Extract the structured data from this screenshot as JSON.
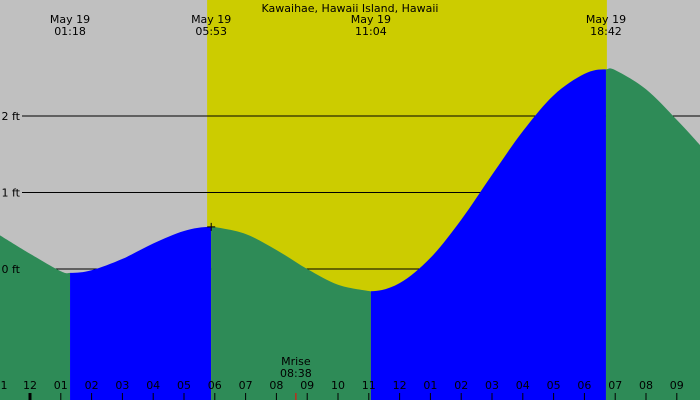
{
  "chart_data": {
    "type": "tide",
    "title": "Kawaihae, Hawaii Island, Hawaii",
    "x": [
      -0.974,
      0,
      1,
      1.3,
      2,
      3,
      4,
      5,
      5.883,
      6,
      7,
      8,
      9,
      10,
      11,
      11.067,
      12,
      13,
      14,
      15,
      16,
      17,
      18,
      18.7,
      19,
      20,
      21,
      21.753
    ],
    "values": [
      0.44,
      0.2,
      -0.03,
      -0.05,
      -0.016,
      0.132,
      0.333,
      0.497,
      0.55,
      0.549,
      0.458,
      0.249,
      0.0,
      -0.205,
      -0.287,
      -0.29,
      -0.185,
      0.145,
      0.644,
      1.23,
      1.8,
      2.27,
      2.55,
      2.61,
      2.6,
      2.35,
      1.95,
      1.62
    ],
    "extremes": [
      {
        "date": "May 19",
        "time": "01:18"
      },
      {
        "date": "May 19",
        "time": "05:53"
      },
      {
        "date": "May 19",
        "time": "11:04"
      },
      {
        "date": "May 19",
        "time": "18:42"
      }
    ],
    "rising_color": "#0000ff",
    "falling_color": "#2e8b57",
    "night_color": "#c0c0c0",
    "day_color": "#cccc00",
    "daylight": [
      5.75,
      18.73
    ],
    "moonrise": {
      "label": "Mrise",
      "time": "08:38",
      "x": 8.633
    },
    "xlim": [
      -0.974,
      21.753
    ],
    "ylim": [
      -1.712,
      3.516
    ],
    "yticks": [
      {
        "value": 0,
        "label": "0 ft"
      },
      {
        "value": 1,
        "label": "1 ft"
      },
      {
        "value": 2,
        "label": "2 ft"
      }
    ],
    "xticks": [
      {
        "value": -1,
        "label": "1"
      },
      {
        "value": 0,
        "label": "12"
      },
      {
        "value": 1,
        "label": "01"
      },
      {
        "value": 2,
        "label": "02"
      },
      {
        "value": 3,
        "label": "03"
      },
      {
        "value": 4,
        "label": "04"
      },
      {
        "value": 5,
        "label": "05"
      },
      {
        "value": 6,
        "label": "06"
      },
      {
        "value": 7,
        "label": "07"
      },
      {
        "value": 8,
        "label": "08"
      },
      {
        "value": 9,
        "label": "09"
      },
      {
        "value": 10,
        "label": "10"
      },
      {
        "value": 11,
        "label": "11"
      },
      {
        "value": 12,
        "label": "12"
      },
      {
        "value": 13,
        "label": "01"
      },
      {
        "value": 14,
        "label": "02"
      },
      {
        "value": 15,
        "label": "03"
      },
      {
        "value": 16,
        "label": "04"
      },
      {
        "value": 17,
        "label": "05"
      },
      {
        "value": 18,
        "label": "06"
      },
      {
        "value": 19,
        "label": "07"
      },
      {
        "value": 20,
        "label": "08"
      },
      {
        "value": 21,
        "label": "09"
      }
    ]
  }
}
